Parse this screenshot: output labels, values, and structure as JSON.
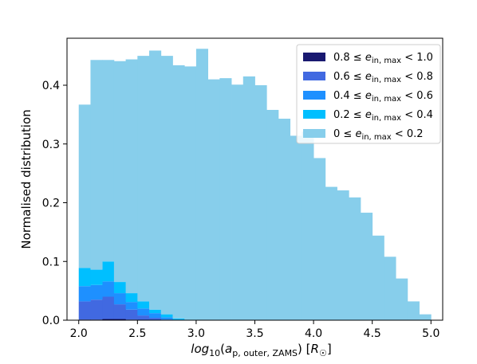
{
  "chart_data": {
    "type": "bar",
    "stacked": true,
    "title": "",
    "xlabel": "log10(a_p, outer, ZAMS) [R☉]",
    "ylabel": "Normalised distribution",
    "xlim": [
      1.9,
      5.1
    ],
    "ylim": [
      0,
      0.48
    ],
    "xticks": [
      2.0,
      2.5,
      3.0,
      3.5,
      4.0,
      4.5,
      5.0
    ],
    "yticks": [
      0.0,
      0.1,
      0.2,
      0.3,
      0.4
    ],
    "xtick_labels": [
      "2.0",
      "2.5",
      "3.0",
      "3.5",
      "4.0",
      "4.5",
      "5.0"
    ],
    "ytick_labels": [
      "0.0",
      "0.1",
      "0.2",
      "0.3",
      "0.4"
    ],
    "legend_position": "top-right",
    "grid": false,
    "bin_edges": [
      2.0,
      2.1,
      2.2,
      2.3,
      2.4,
      2.5,
      2.6,
      2.7,
      2.8,
      2.9,
      3.0,
      3.1,
      3.2,
      3.3,
      3.4,
      3.5,
      3.6,
      3.7,
      3.8,
      3.9,
      4.0,
      4.1,
      4.2,
      4.3,
      4.4,
      4.5,
      4.6,
      4.7,
      4.8,
      4.9,
      5.0
    ],
    "series": [
      {
        "name": "0.8 ≤ e_in, max < 1.0",
        "color": "#191970",
        "values": [
          0.001,
          0.001,
          0.002,
          0.002,
          0.001,
          0,
          0,
          0,
          0,
          0,
          0,
          0,
          0,
          0,
          0,
          0,
          0,
          0,
          0,
          0,
          0,
          0,
          0,
          0,
          0,
          0,
          0,
          0,
          0,
          0
        ]
      },
      {
        "name": "0.6 ≤ e_in, max < 0.8",
        "color": "#4169E1",
        "values": [
          0.031,
          0.034,
          0.038,
          0.025,
          0.017,
          0.008,
          0.004,
          0.001,
          0,
          0,
          0,
          0,
          0,
          0,
          0,
          0,
          0,
          0,
          0,
          0,
          0,
          0,
          0,
          0,
          0,
          0,
          0,
          0,
          0,
          0
        ]
      },
      {
        "name": "0.4 ≤ e_in, max < 0.6",
        "color": "#1E90FF",
        "values": [
          0.026,
          0.025,
          0.026,
          0.019,
          0.013,
          0.012,
          0.008,
          0.004,
          0.001,
          0,
          0,
          0,
          0,
          0,
          0,
          0,
          0,
          0,
          0,
          0,
          0,
          0,
          0,
          0,
          0,
          0,
          0,
          0,
          0,
          0
        ]
      },
      {
        "name": "0.2 ≤ e_in, max < 0.4",
        "color": "#00BFFF",
        "values": [
          0.031,
          0.026,
          0.034,
          0.019,
          0.015,
          0.012,
          0.006,
          0.005,
          0.002,
          0.001,
          0,
          0,
          0,
          0,
          0,
          0,
          0,
          0,
          0,
          0,
          0,
          0,
          0,
          0,
          0,
          0,
          0,
          0,
          0,
          0
        ]
      },
      {
        "name": "0 ≤ e_in, max < 0.2",
        "color": "#87CEEB",
        "values": [
          0.278,
          0.357,
          0.343,
          0.376,
          0.398,
          0.418,
          0.441,
          0.44,
          0.431,
          0.431,
          0.462,
          0.41,
          0.412,
          0.401,
          0.415,
          0.4,
          0.358,
          0.343,
          0.314,
          0.321,
          0.276,
          0.227,
          0.221,
          0.209,
          0.183,
          0.144,
          0.108,
          0.071,
          0.032,
          0.01
        ]
      }
    ]
  }
}
